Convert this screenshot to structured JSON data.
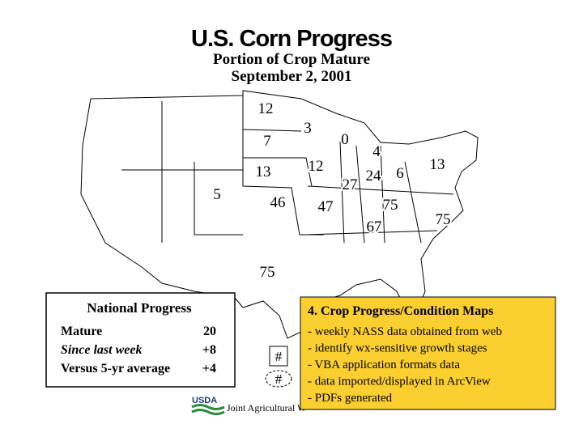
{
  "header": {
    "title": "U.S. Corn Progress",
    "subtitle": "Portion of Crop Mature",
    "date": "September 2, 2001"
  },
  "map": {
    "labels": [
      12,
      3,
      0,
      7,
      4,
      13,
      12,
      6,
      13,
      24,
      27,
      5,
      46,
      47,
      75,
      75,
      67,
      75
    ]
  },
  "national": {
    "title": "National Progress",
    "rows": [
      [
        "Mature",
        20
      ],
      [
        "Since last week",
        "+8"
      ],
      [
        "Versus 5-yr average",
        "+4"
      ]
    ]
  },
  "legend": [
    "#",
    "#"
  ],
  "footer": {
    "logo": "USDA",
    "text": "Joint Agricultural W"
  },
  "notes": {
    "heading": "4.  Crop Progress/Condition Maps",
    "bullets": [
      "- weekly NASS data obtained from web",
      "- identify wx-sensitive growth stages",
      "- VBA application formats data",
      "- data imported/displayed in ArcView",
      "- PDFs generated"
    ]
  }
}
